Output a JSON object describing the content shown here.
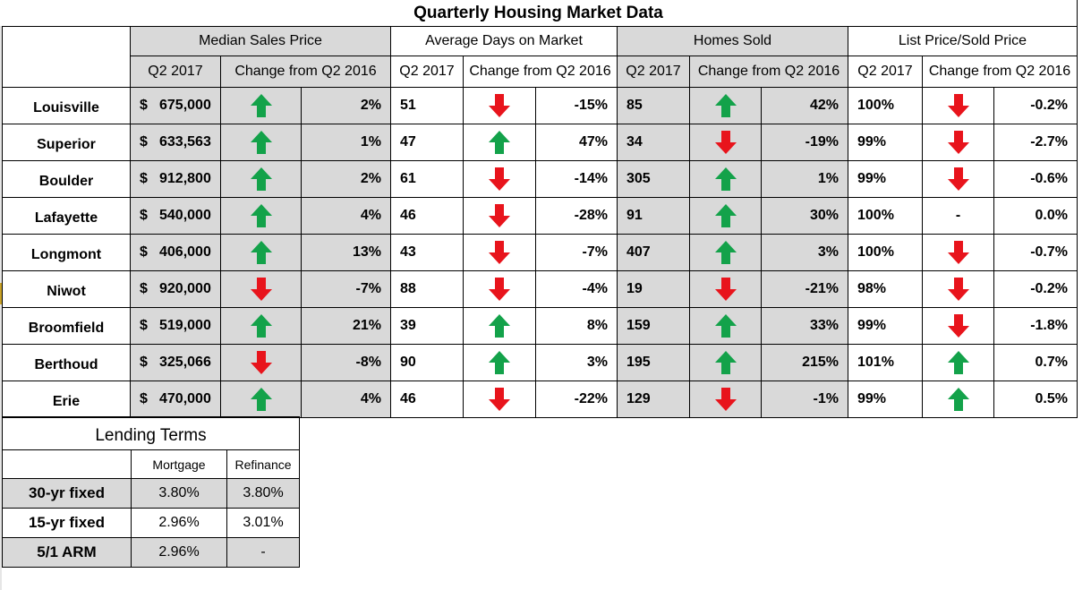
{
  "title": "Quarterly Housing Market Data",
  "colors": {
    "up": "#13a24a",
    "down": "#e8141c",
    "header_bg": "#d9d9d9"
  },
  "groups": {
    "median": "Median Sales Price",
    "days": "Average Days on Market",
    "sold": "Homes Sold",
    "ratio": "List Price/Sold Price"
  },
  "subheaders": {
    "q2017": "Q2 2017",
    "change": "Change from Q2 2016"
  },
  "rows": [
    {
      "city": "Louisville",
      "currency": "$",
      "price": "675,000",
      "price_dir": "up",
      "price_chg": "2%",
      "days": "51",
      "days_dir": "down",
      "days_chg": "-15%",
      "sold": "85",
      "sold_dir": "up",
      "sold_chg": "42%",
      "ratio": "100%",
      "ratio_dir": "down",
      "ratio_chg": "-0.2%"
    },
    {
      "city": "Superior",
      "currency": "$",
      "price": "633,563",
      "price_dir": "up",
      "price_chg": "1%",
      "days": "47",
      "days_dir": "up",
      "days_chg": "47%",
      "sold": "34",
      "sold_dir": "down",
      "sold_chg": "-19%",
      "ratio": "99%",
      "ratio_dir": "down",
      "ratio_chg": "-2.7%"
    },
    {
      "city": "Boulder",
      "currency": "$",
      "price": "912,800",
      "price_dir": "up",
      "price_chg": "2%",
      "days": "61",
      "days_dir": "down",
      "days_chg": "-14%",
      "sold": "305",
      "sold_dir": "up",
      "sold_chg": "1%",
      "ratio": "99%",
      "ratio_dir": "down",
      "ratio_chg": "-0.6%"
    },
    {
      "city": "Lafayette",
      "currency": "$",
      "price": "540,000",
      "price_dir": "up",
      "price_chg": "4%",
      "days": "46",
      "days_dir": "down",
      "days_chg": "-28%",
      "sold": "91",
      "sold_dir": "up",
      "sold_chg": "30%",
      "ratio": "100%",
      "ratio_dir": "none",
      "ratio_mark": "-",
      "ratio_chg": "0.0%"
    },
    {
      "city": "Longmont",
      "currency": "$",
      "price": "406,000",
      "price_dir": "up",
      "price_chg": "13%",
      "days": "43",
      "days_dir": "down",
      "days_chg": "-7%",
      "sold": "407",
      "sold_dir": "up",
      "sold_chg": "3%",
      "ratio": "100%",
      "ratio_dir": "down",
      "ratio_chg": "-0.7%"
    },
    {
      "city": "Niwot",
      "currency": "$",
      "price": "920,000",
      "price_dir": "down",
      "price_chg": "-7%",
      "days": "88",
      "days_dir": "down",
      "days_chg": "-4%",
      "sold": "19",
      "sold_dir": "down",
      "sold_chg": "-21%",
      "ratio": "98%",
      "ratio_dir": "down",
      "ratio_chg": "-0.2%"
    },
    {
      "city": "Broomfield",
      "currency": "$",
      "price": "519,000",
      "price_dir": "up",
      "price_chg": "21%",
      "days": "39",
      "days_dir": "up",
      "days_chg": "8%",
      "sold": "159",
      "sold_dir": "up",
      "sold_chg": "33%",
      "ratio": "99%",
      "ratio_dir": "down",
      "ratio_chg": "-1.8%"
    },
    {
      "city": "Berthoud",
      "currency": "$",
      "price": "325,066",
      "price_dir": "down",
      "price_chg": "-8%",
      "days": "90",
      "days_dir": "up",
      "days_chg": "3%",
      "sold": "195",
      "sold_dir": "up",
      "sold_chg": "215%",
      "ratio": "101%",
      "ratio_dir": "up",
      "ratio_chg": "0.7%"
    },
    {
      "city": "Erie",
      "currency": "$",
      "price": "470,000",
      "price_dir": "up",
      "price_chg": "4%",
      "days": "46",
      "days_dir": "down",
      "days_chg": "-22%",
      "sold": "129",
      "sold_dir": "down",
      "sold_chg": "-1%",
      "ratio": "99%",
      "ratio_dir": "up",
      "ratio_chg": "0.5%"
    }
  ],
  "lending": {
    "title": "Lending Terms",
    "col_mortgage": "Mortgage",
    "col_refinance": "Refinance",
    "rows": [
      {
        "label": "30-yr fixed",
        "mortgage": "3.80%",
        "refinance": "3.80%"
      },
      {
        "label": "15-yr fixed",
        "mortgage": "2.96%",
        "refinance": "3.01%"
      },
      {
        "label": "5/1 ARM",
        "mortgage": "2.96%",
        "refinance": "-"
      }
    ]
  }
}
